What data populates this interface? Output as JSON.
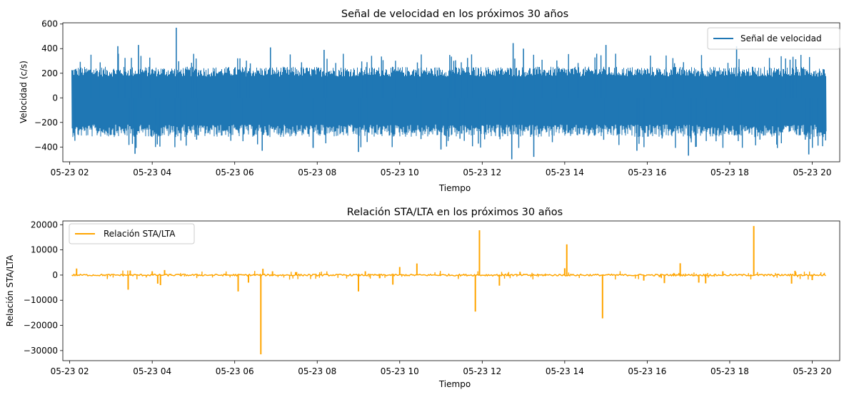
{
  "chart_data": [
    {
      "type": "line",
      "title": "Señal de velocidad en los próximos 30 años",
      "xlabel": "Tiempo",
      "ylabel": "Velocidad (c/s)",
      "x_range": [
        "05-23 01:50",
        "05-23 20:40"
      ],
      "x_ticks": [
        "05-23 02",
        "05-23 04",
        "05-23 06",
        "05-23 08",
        "05-23 10",
        "05-23 12",
        "05-23 14",
        "05-23 16",
        "05-23 18",
        "05-23 20"
      ],
      "ylim": [
        -520,
        610
      ],
      "y_ticks": [
        600,
        400,
        200,
        0,
        -200,
        -400
      ],
      "y_tick_labels": [
        "600",
        "400",
        "200",
        "0",
        "−200",
        "−400"
      ],
      "legend_position": "upper right",
      "grid": false,
      "series": [
        {
          "name": "Señal de velocidad",
          "color": "#1f77b4",
          "band": {
            "x_start": "05-23 02:03",
            "x_end": "05-23 20:20",
            "typical_high": 230,
            "typical_low": -290
          },
          "peaks": [
            {
              "x": "05-23 04:35",
              "y": 570
            },
            {
              "x": "05-23 03:10",
              "y": 420
            },
            {
              "x": "05-23 03:40",
              "y": 430
            },
            {
              "x": "05-23 06:52",
              "y": 410
            },
            {
              "x": "05-23 08:10",
              "y": 390
            },
            {
              "x": "05-23 12:45",
              "y": 445
            },
            {
              "x": "05-23 15:00",
              "y": 430
            },
            {
              "x": "05-23 18:10",
              "y": 420
            },
            {
              "x": "05-23 13:00",
              "y": 400
            }
          ],
          "troughs": [
            {
              "x": "05-23 12:43",
              "y": -500
            },
            {
              "x": "05-23 13:15",
              "y": -480
            },
            {
              "x": "05-23 03:35",
              "y": -455
            },
            {
              "x": "05-23 19:55",
              "y": -460
            },
            {
              "x": "05-23 17:00",
              "y": -470
            },
            {
              "x": "05-23 09:00",
              "y": -440
            },
            {
              "x": "05-23 06:40",
              "y": -430
            },
            {
              "x": "05-23 15:45",
              "y": -430
            },
            {
              "x": "05-23 11:00",
              "y": -420
            }
          ]
        }
      ]
    },
    {
      "type": "line",
      "title": "Relación STA/LTA en los próximos 30 años",
      "xlabel": "Tiempo",
      "ylabel": "Relación STA/LTA",
      "x_range": [
        "05-23 01:50",
        "05-23 20:40"
      ],
      "x_ticks": [
        "05-23 02",
        "05-23 04",
        "05-23 06",
        "05-23 08",
        "05-23 10",
        "05-23 12",
        "05-23 14",
        "05-23 16",
        "05-23 18",
        "05-23 20"
      ],
      "ylim": [
        -34000,
        21500
      ],
      "y_ticks": [
        20000,
        10000,
        0,
        -10000,
        -20000,
        -30000
      ],
      "y_tick_labels": [
        "20000",
        "10000",
        "0",
        "−10000",
        "−20000",
        "−30000"
      ],
      "legend_position": "upper left",
      "grid": false,
      "series": [
        {
          "name": "Relación STA/LTA",
          "color": "#ffa500",
          "x_start": "05-23 02:03",
          "x_end": "05-23 20:20",
          "spikes": [
            {
              "x": "05-23 02:10",
              "y": 2600
            },
            {
              "x": "05-23 03:25",
              "y": -5800
            },
            {
              "x": "05-23 03:28",
              "y": 1800
            },
            {
              "x": "05-23 04:00",
              "y": 1500
            },
            {
              "x": "05-23 04:08",
              "y": -3400
            },
            {
              "x": "05-23 04:12",
              "y": -4000
            },
            {
              "x": "05-23 04:18",
              "y": 2000
            },
            {
              "x": "05-23 06:05",
              "y": -6500
            },
            {
              "x": "05-23 06:20",
              "y": -3000
            },
            {
              "x": "05-23 06:38",
              "y": -31500
            },
            {
              "x": "05-23 06:41",
              "y": 2500
            },
            {
              "x": "05-23 06:55",
              "y": 1500
            },
            {
              "x": "05-23 07:30",
              "y": 1200
            },
            {
              "x": "05-23 09:00",
              "y": -6500
            },
            {
              "x": "05-23 09:10",
              "y": 1500
            },
            {
              "x": "05-23 09:50",
              "y": -3800
            },
            {
              "x": "05-23 10:00",
              "y": 3200
            },
            {
              "x": "05-23 10:25",
              "y": 4600
            },
            {
              "x": "05-23 11:50",
              "y": -14500
            },
            {
              "x": "05-23 11:56",
              "y": 17800
            },
            {
              "x": "05-23 12:25",
              "y": -4200
            },
            {
              "x": "05-23 12:55",
              "y": 1300
            },
            {
              "x": "05-23 14:00",
              "y": 2700
            },
            {
              "x": "05-23 14:03",
              "y": 12200
            },
            {
              "x": "05-23 14:55",
              "y": -17200
            },
            {
              "x": "05-23 15:55",
              "y": -2200
            },
            {
              "x": "05-23 16:25",
              "y": -3200
            },
            {
              "x": "05-23 16:48",
              "y": 4700
            },
            {
              "x": "05-23 17:15",
              "y": -3000
            },
            {
              "x": "05-23 17:25",
              "y": -3300
            },
            {
              "x": "05-23 17:50",
              "y": 1500
            },
            {
              "x": "05-23 18:35",
              "y": 19500
            },
            {
              "x": "05-23 19:30",
              "y": -3400
            },
            {
              "x": "05-23 19:35",
              "y": 1700
            },
            {
              "x": "05-23 20:00",
              "y": -2000
            }
          ]
        }
      ]
    }
  ]
}
